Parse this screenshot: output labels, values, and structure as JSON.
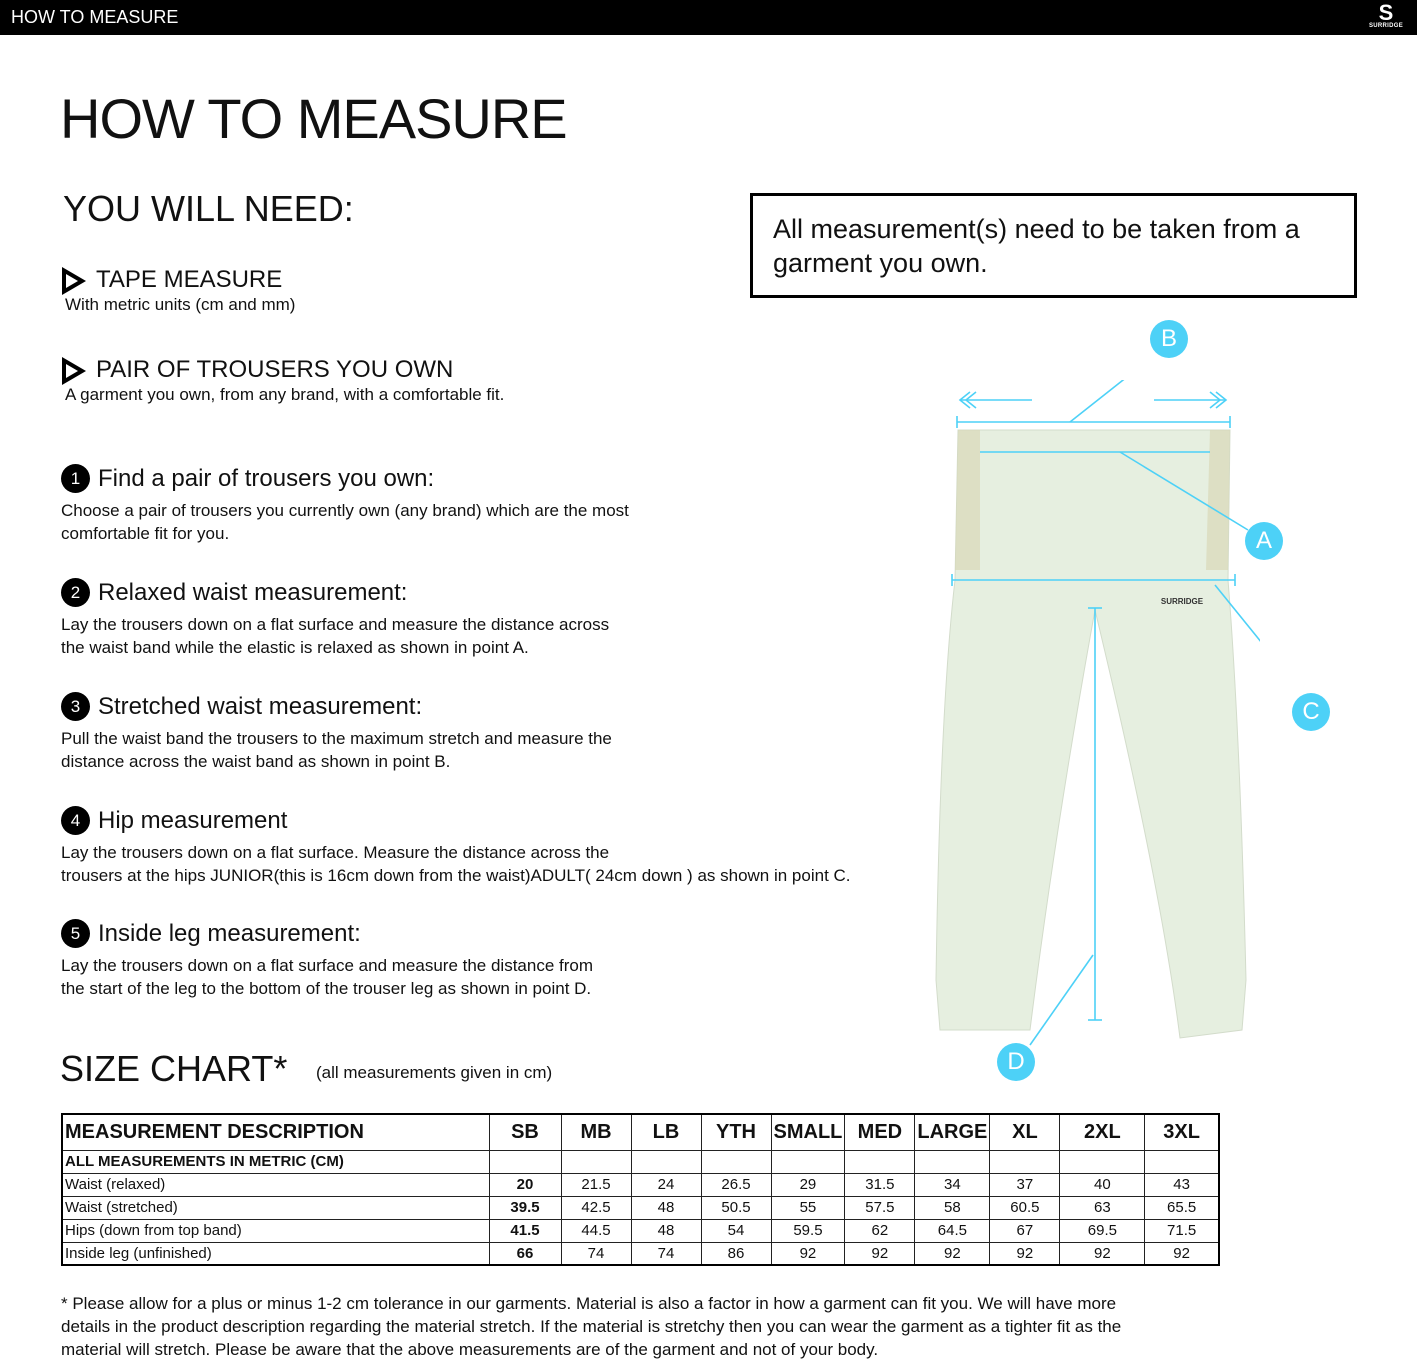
{
  "topbar": {
    "title": "HOW TO MEASURE",
    "logo_text": "SURRIDGE"
  },
  "title": "HOW TO MEASURE",
  "need": {
    "heading": "YOU WILL NEED:",
    "items": [
      {
        "title": "TAPE MEASURE",
        "desc": "With metric units (cm and mm)"
      },
      {
        "title": "PAIR OF TROUSERS YOU OWN",
        "desc": "A garment you own, from any brand, with a comfortable fit."
      }
    ]
  },
  "note": "All measurement(s) need to be taken from a garment you own.",
  "steps": [
    {
      "num": "1",
      "title": "Find a pair of trousers you own:",
      "desc": "Choose a pair of trousers you currently own (any brand) which are the most\ncomfortable fit for you."
    },
    {
      "num": "2",
      "title": "Relaxed waist measurement:",
      "desc": "Lay the trousers down on a flat surface and measure the distance across\nthe waist band while the elastic is relaxed as shown in point A."
    },
    {
      "num": "3",
      "title": "Stretched waist measurement:",
      "desc": "Pull the waist band the trousers to the maximum stretch and measure the\ndistance across the waist band as shown in point B."
    },
    {
      "num": "4",
      "title": "Hip measurement",
      "desc": "Lay the trousers down on a flat surface. Measure the distance across the\ntrousers at the hips JUNIOR(this is 16cm down from the waist)ADULT( 24cm down ) as shown in point C."
    },
    {
      "num": "5",
      "title": "Inside leg measurement:",
      "desc": "Lay the trousers down on a flat surface and measure the distance from\nthe start of the leg to the bottom of the trouser leg as shown in point D."
    }
  ],
  "diagram": {
    "points": [
      "A",
      "B",
      "C",
      "D"
    ],
    "accent": "#4dd1f7",
    "garment_logo": "SURRIDGE"
  },
  "size_chart": {
    "title": "SIZE CHART*",
    "note": "(all measurements given in cm)",
    "headers": [
      "MEASUREMENT DESCRIPTION",
      "SB",
      "MB",
      "LB",
      "YTH",
      "SMALL",
      "MED",
      "LARGE",
      "XL",
      "2XL",
      "3XL"
    ],
    "subheader": "ALL MEASUREMENTS IN METRIC (CM)",
    "rows": [
      {
        "label": "Waist (relaxed)",
        "values": [
          "20",
          "21.5",
          "24",
          "26.5",
          "29",
          "31.5",
          "34",
          "37",
          "40",
          "43"
        ]
      },
      {
        "label": "Waist (stretched)",
        "values": [
          "39.5",
          "42.5",
          "48",
          "50.5",
          "55",
          "57.5",
          "58",
          "60.5",
          "63",
          "65.5"
        ]
      },
      {
        "label": "Hips (down from top band)",
        "values": [
          "41.5",
          "44.5",
          "48",
          "54",
          "59.5",
          "62",
          "64.5",
          "67",
          "69.5",
          "71.5"
        ]
      },
      {
        "label": "Inside leg (unfinished)",
        "values": [
          "66",
          "74",
          "74",
          "86",
          "92",
          "92",
          "92",
          "92",
          "92",
          "92"
        ]
      }
    ]
  },
  "footnote": "* Please allow for a plus or minus 1-2 cm tolerance in our garments. Material is also a factor in how a garment can fit you. We will have more details in the product description regarding the material stretch.  If the material is stretchy then you can wear the garment as a tighter fit as the material will stretch.  Please be aware that the above measurements are of the garment and not of your body."
}
